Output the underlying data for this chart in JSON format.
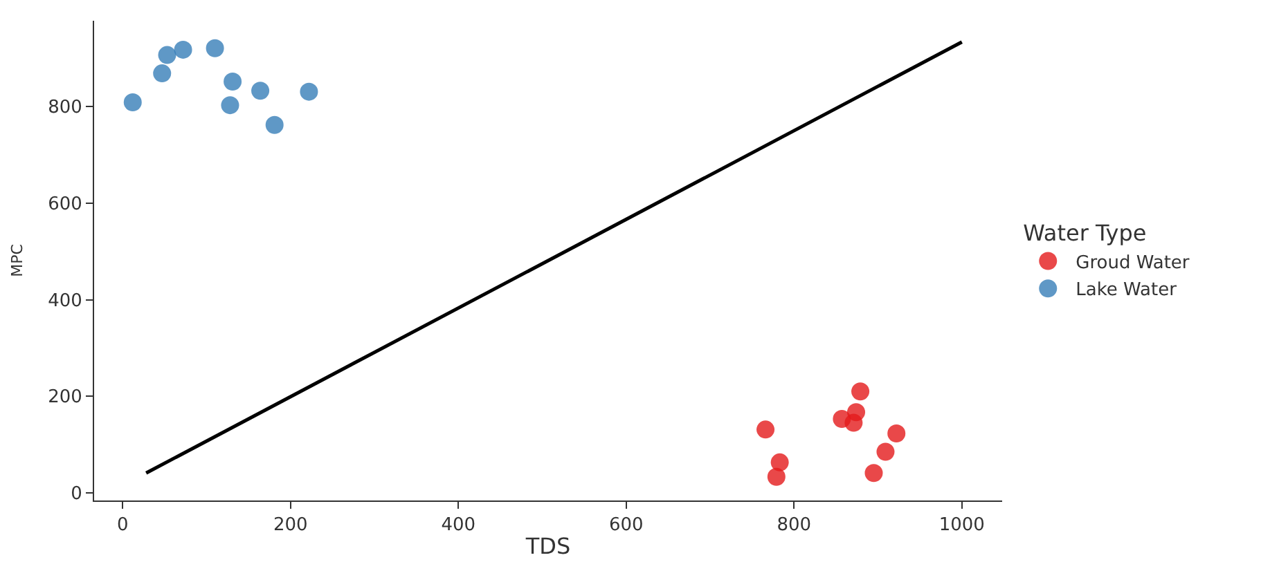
{
  "chart_data": {
    "type": "scatter",
    "xlabel": "TDS",
    "ylabel": "MPC",
    "legend_title": "Water Type",
    "legend": "right",
    "marker": "circle",
    "xlim": [
      -34,
      1048
    ],
    "ylim": [
      -16,
      978
    ],
    "xticks": [
      0,
      200,
      400,
      600,
      800,
      1000
    ],
    "yticks": [
      0,
      200,
      400,
      600,
      800
    ],
    "series": [
      {
        "name": "Groud Water",
        "color": "#e41a1c",
        "x": [
          766,
          783,
          779,
          857,
          871,
          874,
          879,
          922,
          909,
          895
        ],
        "values": [
          131,
          63,
          33,
          153,
          145,
          167,
          210,
          123,
          85,
          41
        ]
      },
      {
        "name": "Lake Water",
        "color": "#377eb8",
        "x": [
          12,
          53,
          47,
          72,
          110,
          131,
          128,
          164,
          181,
          222
        ],
        "values": [
          809,
          907,
          869,
          918,
          921,
          852,
          803,
          833,
          762,
          831
        ]
      },
      {
        "type": "line",
        "color": "#000000",
        "x": [
          28,
          1000
        ],
        "values": [
          41,
          934
        ],
        "marker": "none",
        "line_style": "solid"
      }
    ]
  }
}
